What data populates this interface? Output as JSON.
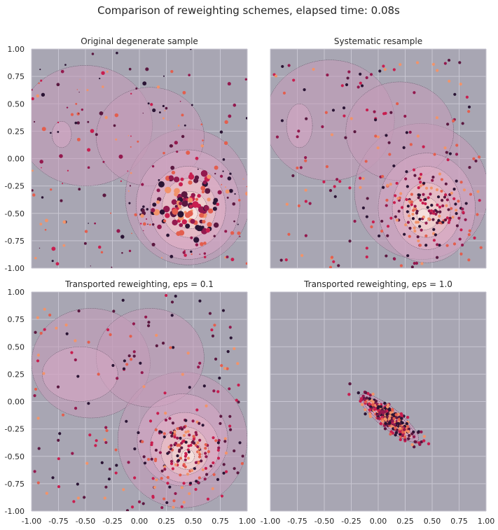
{
  "figure": {
    "title": "Comparison of reweighting schemes, elapsed time: 0.08s"
  },
  "colors": {
    "axes_bg": "#a8a6b3",
    "grid": "#c8c6d2",
    "contour_levels": [
      "#c49ab8",
      "#d6a7c4",
      "#e6b2c6",
      "#f0c6c7",
      "#f6dcd4",
      "#fbeee9"
    ],
    "contour_edge": "#5a4a5e",
    "point_palette": [
      "#2a1434",
      "#5b1840",
      "#93194e",
      "#c81e4f",
      "#e35e4e",
      "#f2936a"
    ]
  },
  "chart_data": [
    {
      "type": "scatter",
      "title": "Original degenerate sample",
      "xlim": [
        -1,
        1
      ],
      "ylim": [
        -1,
        1
      ],
      "xticks": [
        "-1.00",
        "-0.75",
        "-0.50",
        "-0.25",
        "0.00",
        "0.25",
        "0.50",
        "0.75",
        "1.00"
      ],
      "yticks": [
        "-1.00",
        "-0.75",
        "-0.50",
        "-0.25",
        "0.00",
        "0.25",
        "0.50",
        "0.75",
        "1.00"
      ],
      "grid": true,
      "n_points": 320,
      "size_range": [
        0.6,
        4.6
      ],
      "density_center": [
        0.45,
        -0.45
      ]
    },
    {
      "type": "scatter",
      "title": "Systematic resample",
      "xlim": [
        -1,
        1
      ],
      "ylim": [
        -1,
        1
      ],
      "xticks": [
        "-1.00",
        "-0.75",
        "-0.50",
        "-0.25",
        "0.00",
        "0.25",
        "0.50",
        "0.75",
        "1.00"
      ],
      "yticks": [
        "-1.00",
        "-0.75",
        "-0.50",
        "-0.25",
        "0.00",
        "0.25",
        "0.50",
        "0.75",
        "1.00"
      ],
      "grid": true,
      "n_points": 320,
      "density_center": [
        0.45,
        -0.48
      ]
    },
    {
      "type": "scatter",
      "title": "Transported reweighting, eps = 0.1",
      "xlim": [
        -1,
        1
      ],
      "ylim": [
        -1,
        1
      ],
      "xticks": [
        "-1.00",
        "-0.75",
        "-0.50",
        "-0.25",
        "0.00",
        "0.25",
        "0.50",
        "0.75",
        "1.00"
      ],
      "yticks": [
        "-1.00",
        "-0.75",
        "-0.50",
        "-0.25",
        "0.00",
        "0.25",
        "0.50",
        "0.75",
        "1.00"
      ],
      "grid": true,
      "n_points": 320,
      "density_center": [
        0.45,
        -0.45
      ]
    },
    {
      "type": "scatter",
      "title": "Transported reweighting, eps = 1.0",
      "xlim": [
        -1,
        1
      ],
      "ylim": [
        -1,
        1
      ],
      "xticks": [
        "-1.00",
        "-0.75",
        "-0.50",
        "-0.25",
        "0.00",
        "0.25",
        "0.50",
        "0.75",
        "1.00"
      ],
      "yticks": [
        "-1.00",
        "-0.75",
        "-0.50",
        "-0.25",
        "0.00",
        "0.25",
        "0.50",
        "0.75",
        "1.00"
      ],
      "grid": true,
      "n_points": 320,
      "density_center": [
        0.1,
        -0.15
      ]
    }
  ]
}
